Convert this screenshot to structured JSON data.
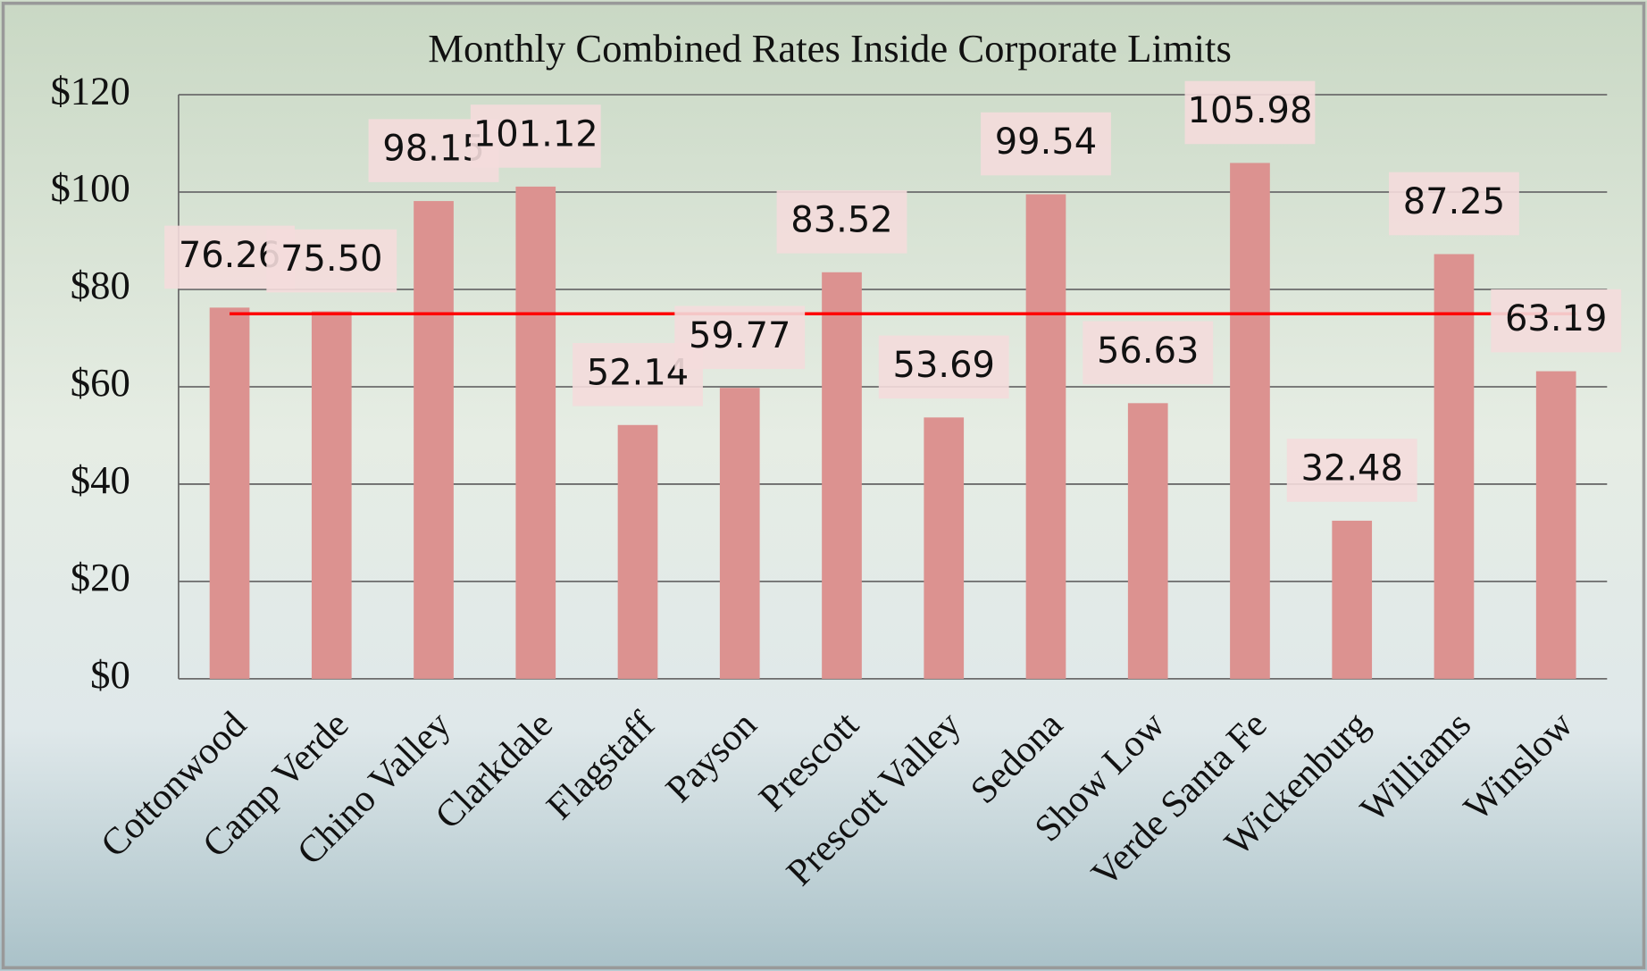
{
  "chart_data": {
    "type": "bar",
    "title": "Monthly Combined Rates Inside Corporate Limits",
    "categories": [
      "Cottonwood",
      "Camp Verde",
      "Chino Valley",
      "Clarkdale",
      "Flagstaff",
      "Payson",
      "Prescott",
      "Prescott Valley",
      "Sedona",
      "Show Low",
      "Verde Santa Fe",
      "Wickenburg",
      "Williams",
      "Winslow"
    ],
    "values": [
      76.26,
      75.5,
      98.15,
      101.12,
      52.14,
      59.77,
      83.52,
      53.69,
      99.54,
      56.63,
      105.98,
      32.48,
      87.25,
      63.19
    ],
    "value_labels": [
      "76.26",
      "75.50",
      "98.15",
      "101.12",
      "52.14",
      "59.77",
      "83.52",
      "53.69",
      "99.54",
      "56.63",
      "105.98",
      "32.48",
      "87.25",
      "63.19"
    ],
    "color": "#dc9290",
    "reference_line": 75,
    "reference_color": "#ff0000",
    "ylim": [
      0,
      120
    ],
    "yticks": [
      {
        "value": 0,
        "label": "$0"
      },
      {
        "value": 20,
        "label": "$20"
      },
      {
        "value": 40,
        "label": "$40"
      },
      {
        "value": 60,
        "label": "$60"
      },
      {
        "value": 80,
        "label": "$80"
      },
      {
        "value": 100,
        "label": "$100"
      },
      {
        "value": 120,
        "label": "$120"
      }
    ],
    "grid": true
  }
}
